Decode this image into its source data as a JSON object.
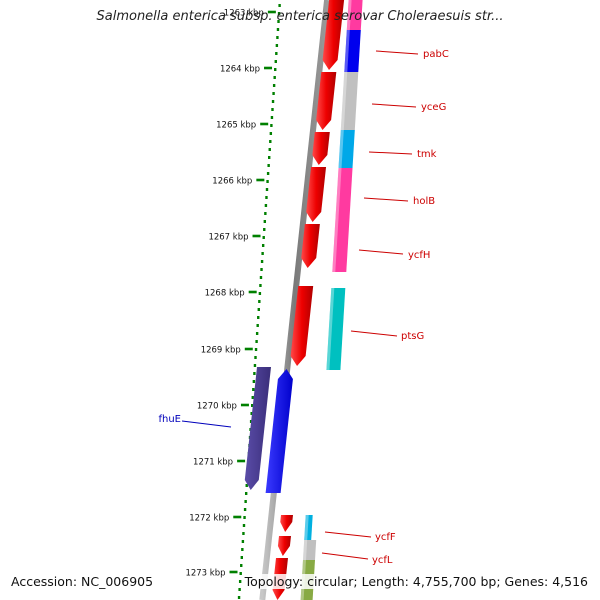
{
  "header": {
    "title": "Salmonella enterica subsp. enterica serovar Choleraesuis str..."
  },
  "ruler": {
    "tick_labels": [
      "1263 kbp",
      "1264 kbp",
      "1265 kbp",
      "1266 kbp",
      "1267 kbp",
      "1268 kbp",
      "1269 kbp",
      "1270 kbp",
      "1271 kbp",
      "1272 kbp",
      "1273 kbp"
    ]
  },
  "genes": [
    {
      "name": "pabC",
      "strand": "+",
      "color": "#0000ee"
    },
    {
      "name": "yceG",
      "strand": "+",
      "color": "#c0c0c0"
    },
    {
      "name": "tmk",
      "strand": "+",
      "color": "#00a8e8"
    },
    {
      "name": "holB",
      "strand": "+",
      "color": "#ff3aa0"
    },
    {
      "name": "ycfH",
      "strand": "+",
      "color": "#ff3aa0"
    },
    {
      "name": "ptsG",
      "strand": "+",
      "color": "#00c0c0"
    },
    {
      "name": "fhuE",
      "strand": "-",
      "color": "#0000ee"
    },
    {
      "name": "ycfF",
      "strand": "+",
      "color": "#00b0e0"
    },
    {
      "name": "ycfL",
      "strand": "+",
      "color": "#c0c0c0"
    }
  ],
  "colors": {
    "cds": "#ee0000",
    "backbone": "#808080",
    "ruler_tick": "#008000",
    "label_plus": "#cc0000",
    "label_minus": "#0000bb",
    "fhuE_cds": "#4b3d8f"
  },
  "footer": {
    "accession": "Accession: NC_006905",
    "stats": "Topology: circular; Length: 4,755,700 bp; Genes: 4,516"
  }
}
